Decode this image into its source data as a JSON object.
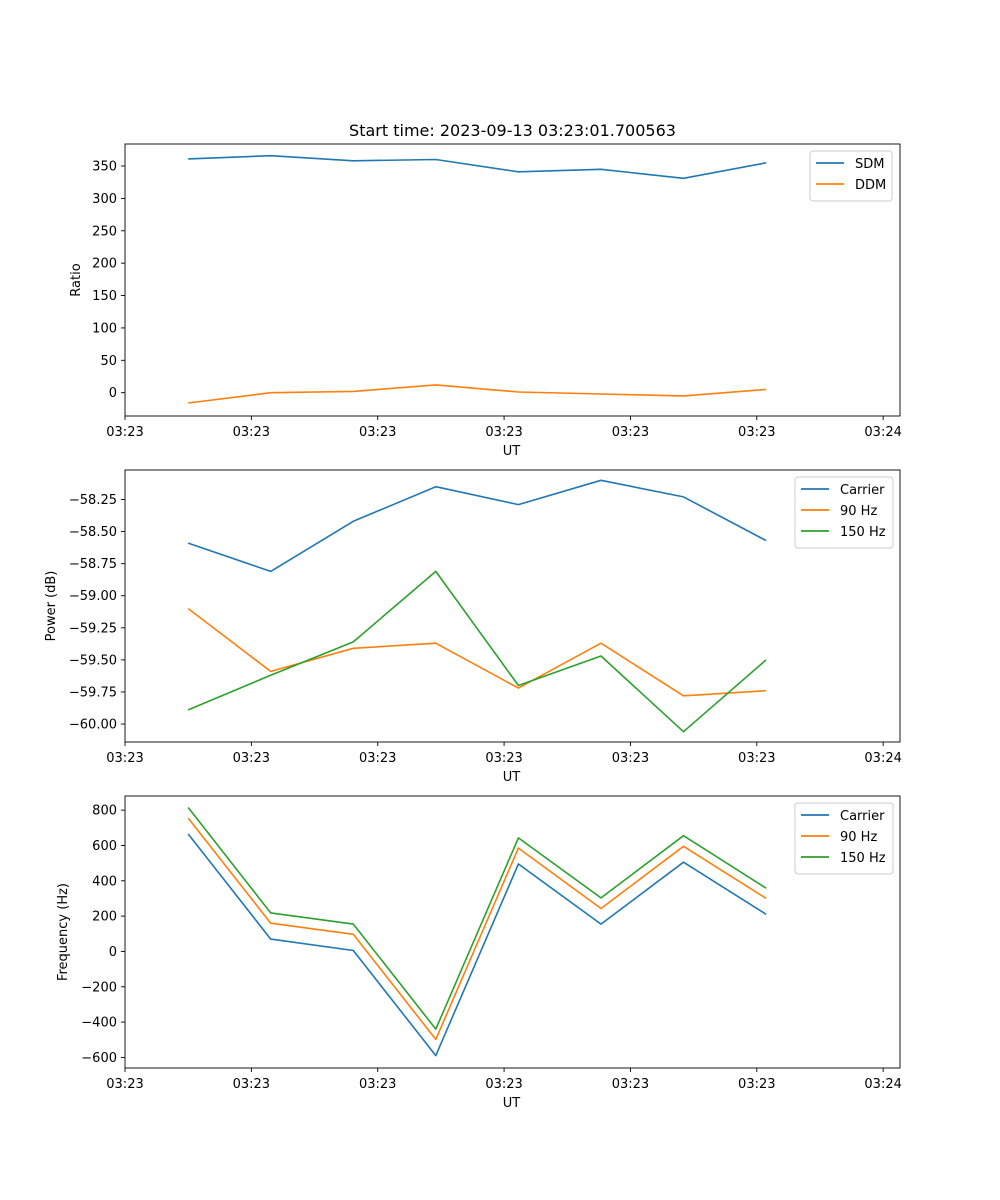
{
  "figure_title": "Start time: 2023-09-13 03:23:01.700563",
  "chart_data": [
    {
      "type": "line",
      "title": "Start time: 2023-09-13 03:23:01.700563",
      "xlabel": "UT",
      "ylabel": "Ratio",
      "xlim": [
        0,
        9.2
      ],
      "ylim": [
        -36,
        384
      ],
      "x": [
        0.75,
        1.73,
        2.71,
        3.69,
        4.67,
        5.65,
        6.63,
        7.61
      ],
      "xticks": [
        0,
        1.5,
        3,
        4.5,
        6,
        7.5,
        9
      ],
      "xtick_labels": [
        "03:23",
        "03:23",
        "03:23",
        "03:23",
        "03:23",
        "03:23",
        "03:24"
      ],
      "yticks": [
        0,
        50,
        100,
        150,
        200,
        250,
        300,
        350
      ],
      "ytick_labels": [
        "0",
        "50",
        "100",
        "150",
        "200",
        "250",
        "300",
        "350"
      ],
      "legend_position": "top-right",
      "series": [
        {
          "name": "SDM",
          "color": "#1f77b4",
          "values": [
            361,
            366,
            358,
            360,
            341,
            345,
            331,
            355
          ]
        },
        {
          "name": "DDM",
          "color": "#ff7f0e",
          "values": [
            -16,
            0,
            2,
            12,
            1,
            -2,
            -5,
            5
          ]
        }
      ]
    },
    {
      "type": "line",
      "title": "",
      "xlabel": "UT",
      "ylabel": "Power (dB)",
      "xlim": [
        0,
        9.2
      ],
      "ylim": [
        -60.14,
        -58.02
      ],
      "x": [
        0.75,
        1.73,
        2.71,
        3.69,
        4.67,
        5.65,
        6.63,
        7.61
      ],
      "xticks": [
        0,
        1.5,
        3,
        4.5,
        6,
        7.5,
        9
      ],
      "xtick_labels": [
        "03:23",
        "03:23",
        "03:23",
        "03:23",
        "03:23",
        "03:23",
        "03:24"
      ],
      "yticks": [
        -60.0,
        -59.75,
        -59.5,
        -59.25,
        -59.0,
        -58.75,
        -58.5,
        -58.25
      ],
      "ytick_labels": [
        "−60.00",
        "−59.75",
        "−59.50",
        "−59.25",
        "−59.00",
        "−58.75",
        "−58.50",
        "−58.25"
      ],
      "legend_position": "top-right",
      "series": [
        {
          "name": "Carrier",
          "color": "#1f77b4",
          "values": [
            -58.59,
            -58.81,
            -58.42,
            -58.15,
            -58.29,
            -58.1,
            -58.23,
            -58.57
          ]
        },
        {
          "name": "90 Hz",
          "color": "#ff7f0e",
          "values": [
            -59.1,
            -59.59,
            -59.41,
            -59.37,
            -59.72,
            -59.37,
            -59.78,
            -59.74
          ]
        },
        {
          "name": "150 Hz",
          "color": "#2ca02c",
          "values": [
            -59.89,
            -59.62,
            -59.36,
            -58.81,
            -59.7,
            -59.47,
            -60.06,
            -59.5
          ]
        }
      ]
    },
    {
      "type": "line",
      "title": "",
      "xlabel": "UT",
      "ylabel": "Frequency (Hz)",
      "xlim": [
        0,
        9.2
      ],
      "ylim": [
        -660,
        880
      ],
      "x": [
        0.75,
        1.73,
        2.71,
        3.69,
        4.67,
        5.65,
        6.63,
        7.61
      ],
      "xticks": [
        0,
        1.5,
        3,
        4.5,
        6,
        7.5,
        9
      ],
      "xtick_labels": [
        "03:23",
        "03:23",
        "03:23",
        "03:23",
        "03:23",
        "03:23",
        "03:24"
      ],
      "yticks": [
        -600,
        -400,
        -200,
        0,
        200,
        400,
        600,
        800
      ],
      "ytick_labels": [
        "−600",
        "−400",
        "−200",
        "0",
        "200",
        "400",
        "600",
        "800"
      ],
      "legend_position": "top-right",
      "series": [
        {
          "name": "Carrier",
          "color": "#1f77b4",
          "values": [
            665,
            70,
            5,
            -590,
            495,
            155,
            505,
            210
          ]
        },
        {
          "name": "90 Hz",
          "color": "#ff7f0e",
          "values": [
            755,
            160,
            97,
            -498,
            585,
            243,
            595,
            300
          ]
        },
        {
          "name": "150 Hz",
          "color": "#2ca02c",
          "values": [
            815,
            218,
            155,
            -440,
            643,
            303,
            655,
            358
          ]
        }
      ]
    }
  ]
}
